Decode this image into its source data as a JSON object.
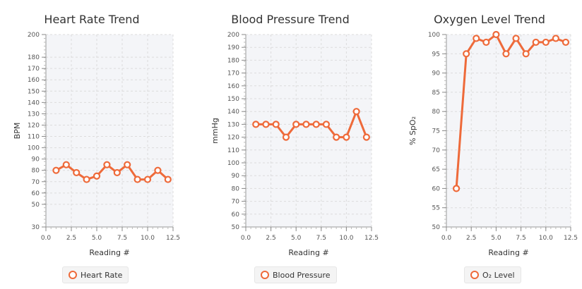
{
  "accent_color": "#ee6a3a",
  "chart_data": [
    {
      "type": "line",
      "title": "Heart Rate Trend",
      "xlabel": "Reading #",
      "ylabel": "BPM",
      "xlim": [
        0,
        12.5
      ],
      "ylim": [
        30,
        200
      ],
      "grid": true,
      "legend_position": "bottom-left",
      "x_ticks": [
        0.0,
        2.5,
        5.0,
        7.5,
        10.0,
        12.5
      ],
      "x_tick_labels": [
        "0.0",
        "2.5",
        "5.0",
        "7.5",
        "10.0",
        "12.5"
      ],
      "y_ticks": [
        30,
        50,
        60,
        70,
        80,
        90,
        100,
        110,
        120,
        130,
        140,
        150,
        160,
        170,
        180,
        200
      ],
      "y_tick_labels": [
        "30",
        "50",
        "60",
        "70",
        "80",
        "90",
        "100",
        "110",
        "120",
        "130",
        "140",
        "150",
        "160",
        "170",
        "180",
        "200"
      ],
      "series": [
        {
          "name": "Heart Rate",
          "x": [
            1,
            2,
            3,
            4,
            5,
            6,
            7,
            8,
            9,
            10,
            11,
            12
          ],
          "values": [
            80,
            85,
            78,
            72,
            75,
            85,
            78,
            85,
            72,
            72,
            80,
            72
          ]
        }
      ]
    },
    {
      "type": "line",
      "title": "Blood Pressure Trend",
      "xlabel": "Reading #",
      "ylabel": "mmHg",
      "xlim": [
        0,
        12.5
      ],
      "ylim": [
        50,
        200
      ],
      "grid": true,
      "legend_position": "bottom-left",
      "x_ticks": [
        0.0,
        2.5,
        5.0,
        7.5,
        10.0,
        12.5
      ],
      "x_tick_labels": [
        "0.0",
        "2.5",
        "5.0",
        "7.5",
        "10.0",
        "12.5"
      ],
      "y_ticks": [
        50,
        60,
        70,
        80,
        90,
        100,
        110,
        120,
        130,
        140,
        150,
        160,
        170,
        180,
        190,
        200
      ],
      "y_tick_labels": [
        "50",
        "60",
        "70",
        "80",
        "90",
        "100",
        "110",
        "120",
        "130",
        "140",
        "150",
        "160",
        "170",
        "180",
        "190",
        "200"
      ],
      "series": [
        {
          "name": "Blood Pressure",
          "x": [
            1,
            2,
            3,
            4,
            5,
            6,
            7,
            8,
            9,
            10,
            11,
            12
          ],
          "values": [
            130,
            130,
            130,
            120,
            130,
            130,
            130,
            130,
            120,
            120,
            140,
            120
          ]
        }
      ]
    },
    {
      "type": "line",
      "title": "Oxygen Level Trend",
      "xlabel": "Reading #",
      "ylabel": "% SpO₂",
      "xlim": [
        0,
        12.5
      ],
      "ylim": [
        50,
        100
      ],
      "grid": true,
      "legend_position": "bottom-left",
      "x_ticks": [
        0.0,
        2.5,
        5.0,
        7.5,
        10.0,
        12.5
      ],
      "x_tick_labels": [
        "0.0",
        "2.5",
        "5.0",
        "7.5",
        "10.0",
        "12.5"
      ],
      "y_ticks": [
        50,
        55,
        60,
        65,
        70,
        75,
        80,
        85,
        90,
        95,
        100
      ],
      "y_tick_labels": [
        "50",
        "55",
        "60",
        "65",
        "70",
        "75",
        "80",
        "85",
        "90",
        "95",
        "100"
      ],
      "series": [
        {
          "name": "O₂ Level",
          "x": [
            1,
            2,
            3,
            4,
            5,
            6,
            7,
            8,
            9,
            10,
            11,
            12
          ],
          "values": [
            60,
            95,
            99,
            98,
            100,
            95,
            99,
            95,
            98,
            98,
            99,
            98
          ]
        }
      ]
    }
  ]
}
